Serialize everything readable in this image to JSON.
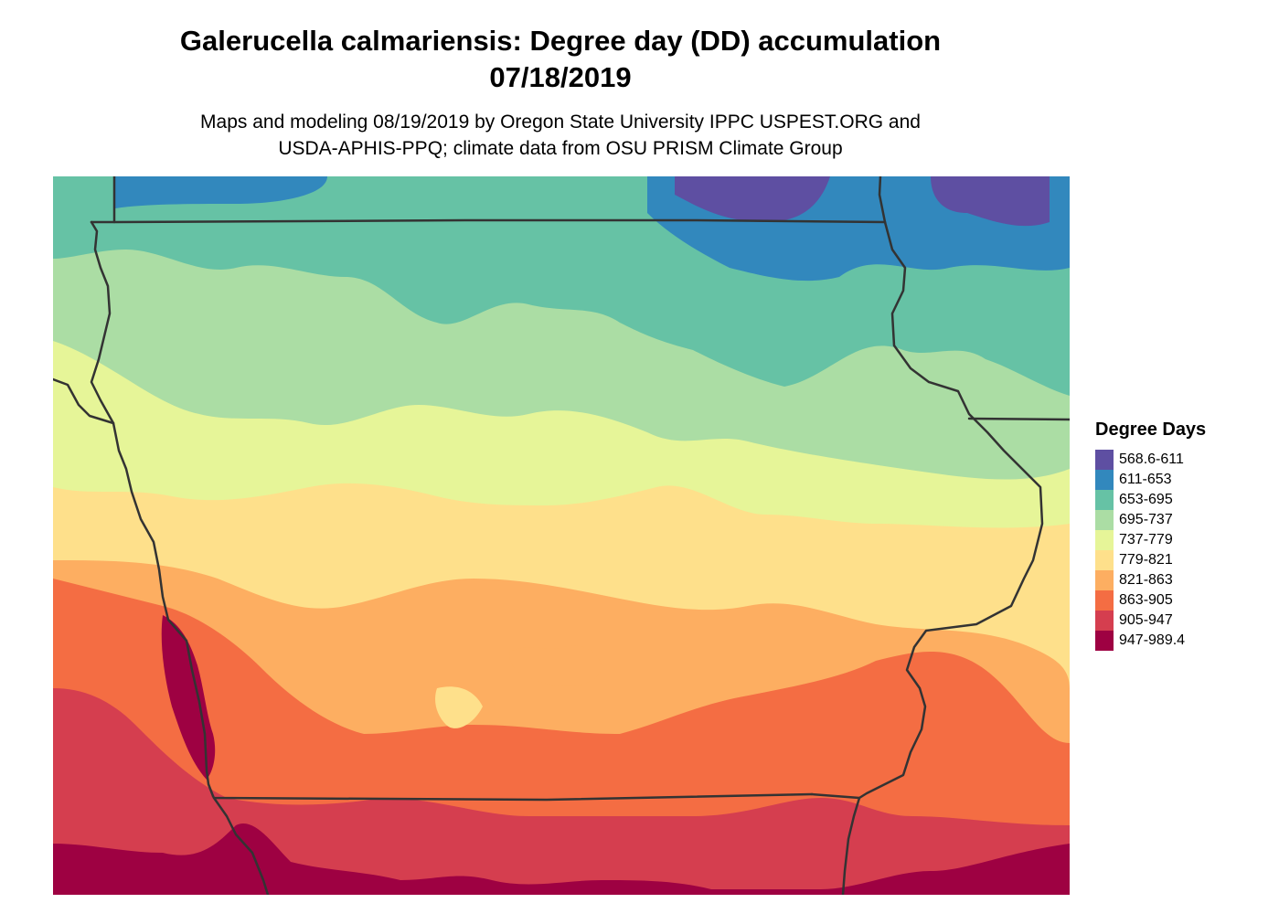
{
  "header": {
    "title_line_1": "Galerucella calmariensis: Degree day (DD) accumulation",
    "title_line_2": "07/18/2019",
    "subtitle_line_1": "Maps and modeling 08/19/2019 by Oregon State University IPPC USPEST.ORG and",
    "subtitle_line_2": "USDA-APHIS-PPQ; climate data from OSU PRISM Climate Group"
  },
  "legend": {
    "title": "Degree Days",
    "items": [
      {
        "label": "568.6-611",
        "color": "#5e4fa2"
      },
      {
        "label": "611-653",
        "color": "#3288bd"
      },
      {
        "label": "653-695",
        "color": "#66c2a5"
      },
      {
        "label": "695-737",
        "color": "#abdda4"
      },
      {
        "label": "737-779",
        "color": "#e6f598"
      },
      {
        "label": "779-821",
        "color": "#fee08b"
      },
      {
        "label": "821-863",
        "color": "#fdae61"
      },
      {
        "label": "863-905",
        "color": "#f46d43"
      },
      {
        "label": "905-947",
        "color": "#d53e4f"
      },
      {
        "label": "947-989.4",
        "color": "#9e0142"
      }
    ]
  },
  "map": {
    "boundary_color": "#333333",
    "region": "Iowa and surrounding states"
  }
}
